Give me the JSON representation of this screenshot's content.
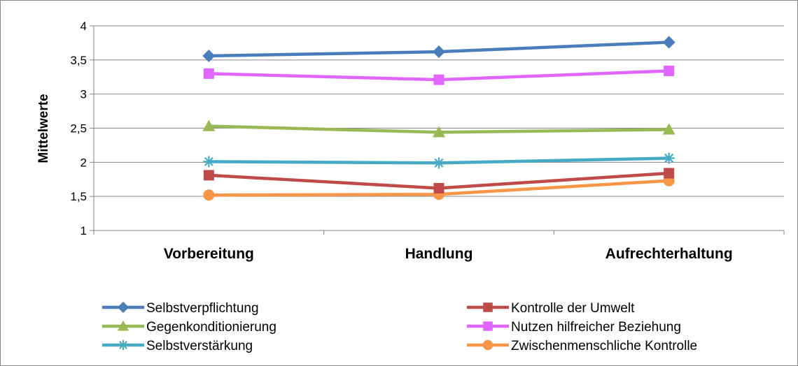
{
  "chart_data": {
    "type": "line",
    "title": "",
    "xlabel": "",
    "ylabel": "Mittelwerte",
    "categories": [
      "Vorbereitung",
      "Handlung",
      "Aufrechterhaltung"
    ],
    "ylim": [
      1,
      4
    ],
    "yticks": [
      1,
      1.5,
      2,
      2.5,
      3,
      3.5,
      4
    ],
    "ytick_labels": [
      "1",
      "1,5",
      "2",
      "2,5",
      "3",
      "3,5",
      "4"
    ],
    "grid": true,
    "legend_position": "bottom",
    "series": [
      {
        "name": "Selbstverpflichtung",
        "values": [
          3.56,
          3.62,
          3.76
        ],
        "color": "#4a7ebb",
        "marker": "diamond"
      },
      {
        "name": "Kontrolle der Umwelt",
        "values": [
          1.81,
          1.62,
          1.84
        ],
        "color": "#be4b48",
        "marker": "square"
      },
      {
        "name": "Gegenkonditionierung",
        "values": [
          2.53,
          2.44,
          2.48
        ],
        "color": "#98b954",
        "marker": "triangle"
      },
      {
        "name": "Nutzen hilfreicher Beziehung",
        "values": [
          3.3,
          3.21,
          3.34
        ],
        "color": "#e066ff",
        "marker": "square"
      },
      {
        "name": "Selbstverstärkung",
        "values": [
          2.01,
          1.99,
          2.06
        ],
        "color": "#46aac5",
        "marker": "star"
      },
      {
        "name": "Zwischenmenschliche Kontrolle",
        "values": [
          1.52,
          1.53,
          1.73
        ],
        "color": "#f79646",
        "marker": "circle"
      }
    ]
  }
}
